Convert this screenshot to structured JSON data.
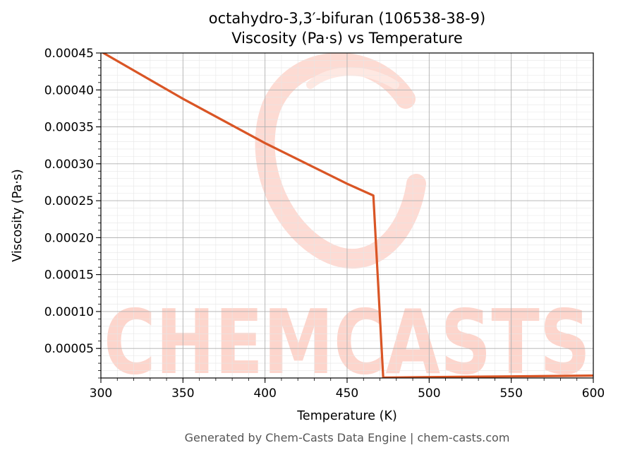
{
  "chart_data": {
    "type": "line",
    "title": "octahydro-3,3′-bifuran (106538-38-9)",
    "subtitle": "Viscosity (Pa·s) vs Temperature",
    "xlabel": "Temperature (K)",
    "ylabel": "Viscosity (Pa·s)",
    "xlim": [
      300,
      600
    ],
    "ylim": [
      1e-05,
      0.00045
    ],
    "xticks": [
      300,
      350,
      400,
      450,
      500,
      550,
      600
    ],
    "xtick_labels": [
      "300",
      "350",
      "400",
      "450",
      "500",
      "550",
      "600"
    ],
    "yticks": [
      5e-05,
      0.0001,
      0.00015,
      0.0002,
      0.00025,
      0.0003,
      0.00035,
      0.0004,
      0.00045
    ],
    "ytick_labels": [
      "0.00005",
      "0.00010",
      "0.00015",
      "0.00020",
      "0.00025",
      "0.00030",
      "0.00035",
      "0.00040",
      "0.00045"
    ],
    "grid": true,
    "series": [
      {
        "color": "#d95525",
        "points": [
          [
            300,
            0.000452
          ],
          [
            350,
            0.000388
          ],
          [
            400,
            0.000328
          ],
          [
            450,
            0.000273
          ],
          [
            466,
            0.000257
          ],
          [
            472,
            1.05e-05
          ],
          [
            500,
            1.12e-05
          ],
          [
            550,
            1.22e-05
          ],
          [
            600,
            1.32e-05
          ]
        ]
      }
    ]
  },
  "watermark": {
    "text": "CHEMCASTS",
    "color": "#fdd5cc"
  },
  "footer": "Generated by Chem-Casts Data Engine | chem-casts.com"
}
